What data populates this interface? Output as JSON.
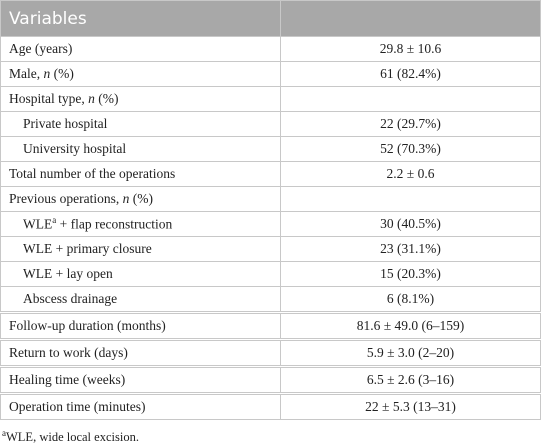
{
  "header": {
    "title": "Variables"
  },
  "rows": [
    {
      "label": [
        {
          "text": "Age (years)"
        }
      ],
      "value": "29.8 ± 10.6"
    },
    {
      "label": [
        {
          "text": "Male, "
        },
        {
          "text": "n",
          "style": "italic"
        },
        {
          "text": " (%)"
        }
      ],
      "value": "61 (82.4%)"
    },
    {
      "label": [
        {
          "text": "Hospital type, "
        },
        {
          "text": "n",
          "style": "italic"
        },
        {
          "text": " (%)"
        }
      ]
    },
    {
      "label": [
        {
          "text": "Private hospital"
        }
      ],
      "indent": true,
      "value": "22 (29.7%)"
    },
    {
      "label": [
        {
          "text": "University hospital"
        }
      ],
      "indent": true,
      "value": "52 (70.3%)"
    },
    {
      "label": [
        {
          "text": "Total number of the operations"
        }
      ],
      "value": "2.2 ± 0.6"
    },
    {
      "label": [
        {
          "text": "Previous operations, "
        },
        {
          "text": "n",
          "style": "italic"
        },
        {
          "text": " (%)"
        }
      ]
    },
    {
      "label": [
        {
          "text": "WLE"
        },
        {
          "text": "a",
          "style": "sup"
        },
        {
          "text": " + flap reconstruction"
        }
      ],
      "indent": true,
      "value": "30 (40.5%)"
    },
    {
      "label": [
        {
          "text": "WLE + primary closure"
        }
      ],
      "indent": true,
      "value": "23 (31.1%)"
    },
    {
      "label": [
        {
          "text": "WLE + lay open"
        }
      ],
      "indent": true,
      "value": "15 (20.3%)"
    },
    {
      "label": [
        {
          "text": "Abscess drainage"
        }
      ],
      "indent": true,
      "value": "6 (8.1%)"
    },
    {
      "label": [
        {
          "text": "Follow-up duration (months)"
        }
      ],
      "value": "81.6 ± 49.0 (6–159)"
    },
    {
      "label": [
        {
          "text": "Return to work (days)"
        }
      ],
      "value": "5.9 ± 3.0 (2–20)"
    },
    {
      "label": [
        {
          "text": "Healing time (weeks)"
        }
      ],
      "value": "6.5 ± 2.6 (3–16)"
    },
    {
      "label": [
        {
          "text": "Operation time (minutes)"
        }
      ],
      "value": "22 ± 5.3 (13–31)"
    }
  ],
  "footnote": {
    "marker": "a",
    "text": "WLE, wide local excision."
  }
}
